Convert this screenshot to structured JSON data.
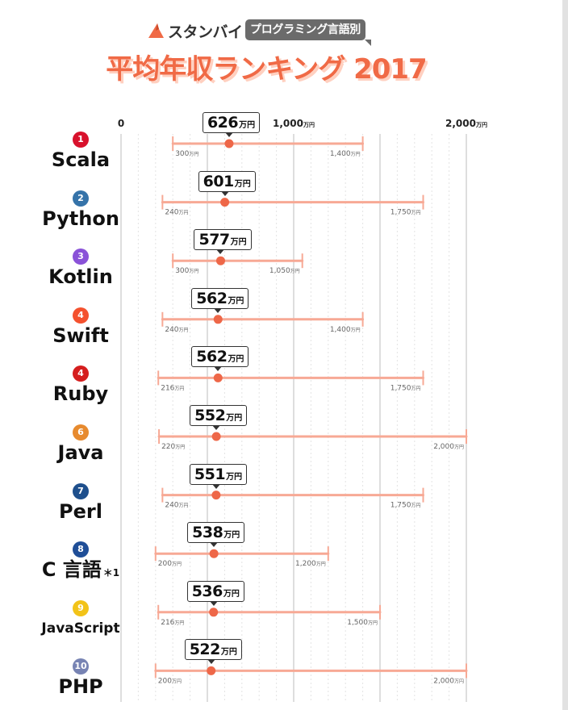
{
  "header": {
    "brand": "スタンバイ",
    "tag": "プログラミング言語別",
    "title": "平均年収ランキング 2017"
  },
  "colors": {
    "accent": "#f06a46",
    "range": "#f7a995",
    "dot": "#ee6748"
  },
  "chart_data": {
    "type": "range-dot",
    "title": "平均年収ランキング 2017",
    "unit": "万円",
    "xlim": [
      0,
      2000
    ],
    "ticks": [
      {
        "value": 0,
        "label": "0",
        "unit": ""
      },
      {
        "value": 1000,
        "label": "1,000",
        "unit": "万円"
      },
      {
        "value": 2000,
        "label": "2,000",
        "unit": "万円"
      }
    ],
    "grid": true,
    "rows": [
      {
        "rank": "1",
        "name": "Scala",
        "avg": 626,
        "avg_label": "626",
        "min": 300,
        "min_label": "300",
        "max": 1400,
        "max_label": "1,400",
        "badge_color": "#d8112c"
      },
      {
        "rank": "2",
        "name": "Python",
        "avg": 601,
        "avg_label": "601",
        "min": 240,
        "min_label": "240",
        "max": 1750,
        "max_label": "1,750",
        "badge_color": "#3573a9"
      },
      {
        "rank": "3",
        "name": "Kotlin",
        "avg": 577,
        "avg_label": "577",
        "min": 300,
        "min_label": "300",
        "max": 1050,
        "max_label": "1,050",
        "badge_color": "#8a52d8"
      },
      {
        "rank": "4",
        "name": "Swift",
        "avg": 562,
        "avg_label": "562",
        "min": 240,
        "min_label": "240",
        "max": 1400,
        "max_label": "1,400",
        "badge_color": "#f4512e"
      },
      {
        "rank": "4",
        "name": "Ruby",
        "avg": 562,
        "avg_label": "562",
        "min": 216,
        "min_label": "216",
        "max": 1750,
        "max_label": "1,750",
        "badge_color": "#d51e1e"
      },
      {
        "rank": "6",
        "name": "Java",
        "avg": 552,
        "avg_label": "552",
        "min": 220,
        "min_label": "220",
        "max": 2000,
        "max_label": "2,000",
        "badge_color": "#e78a2e"
      },
      {
        "rank": "7",
        "name": "Perl",
        "avg": 551,
        "avg_label": "551",
        "min": 240,
        "min_label": "240",
        "max": 1750,
        "max_label": "1,750",
        "badge_color": "#1e4f8c"
      },
      {
        "rank": "8",
        "name": "C 言語",
        "footnote": "＊1",
        "avg": 538,
        "avg_label": "538",
        "min": 200,
        "min_label": "200",
        "max": 1200,
        "max_label": "1,200",
        "badge_color": "#1f4e97"
      },
      {
        "rank": "9",
        "name": "JavaScript",
        "avg": 536,
        "avg_label": "536",
        "min": 216,
        "min_label": "216",
        "max": 1500,
        "max_label": "1,500",
        "badge_color": "#f2c318"
      },
      {
        "rank": "10",
        "name": "PHP",
        "avg": 522,
        "avg_label": "522",
        "min": 200,
        "min_label": "200",
        "max": 2000,
        "max_label": "2,000",
        "badge_color": "#7783b3"
      }
    ]
  }
}
